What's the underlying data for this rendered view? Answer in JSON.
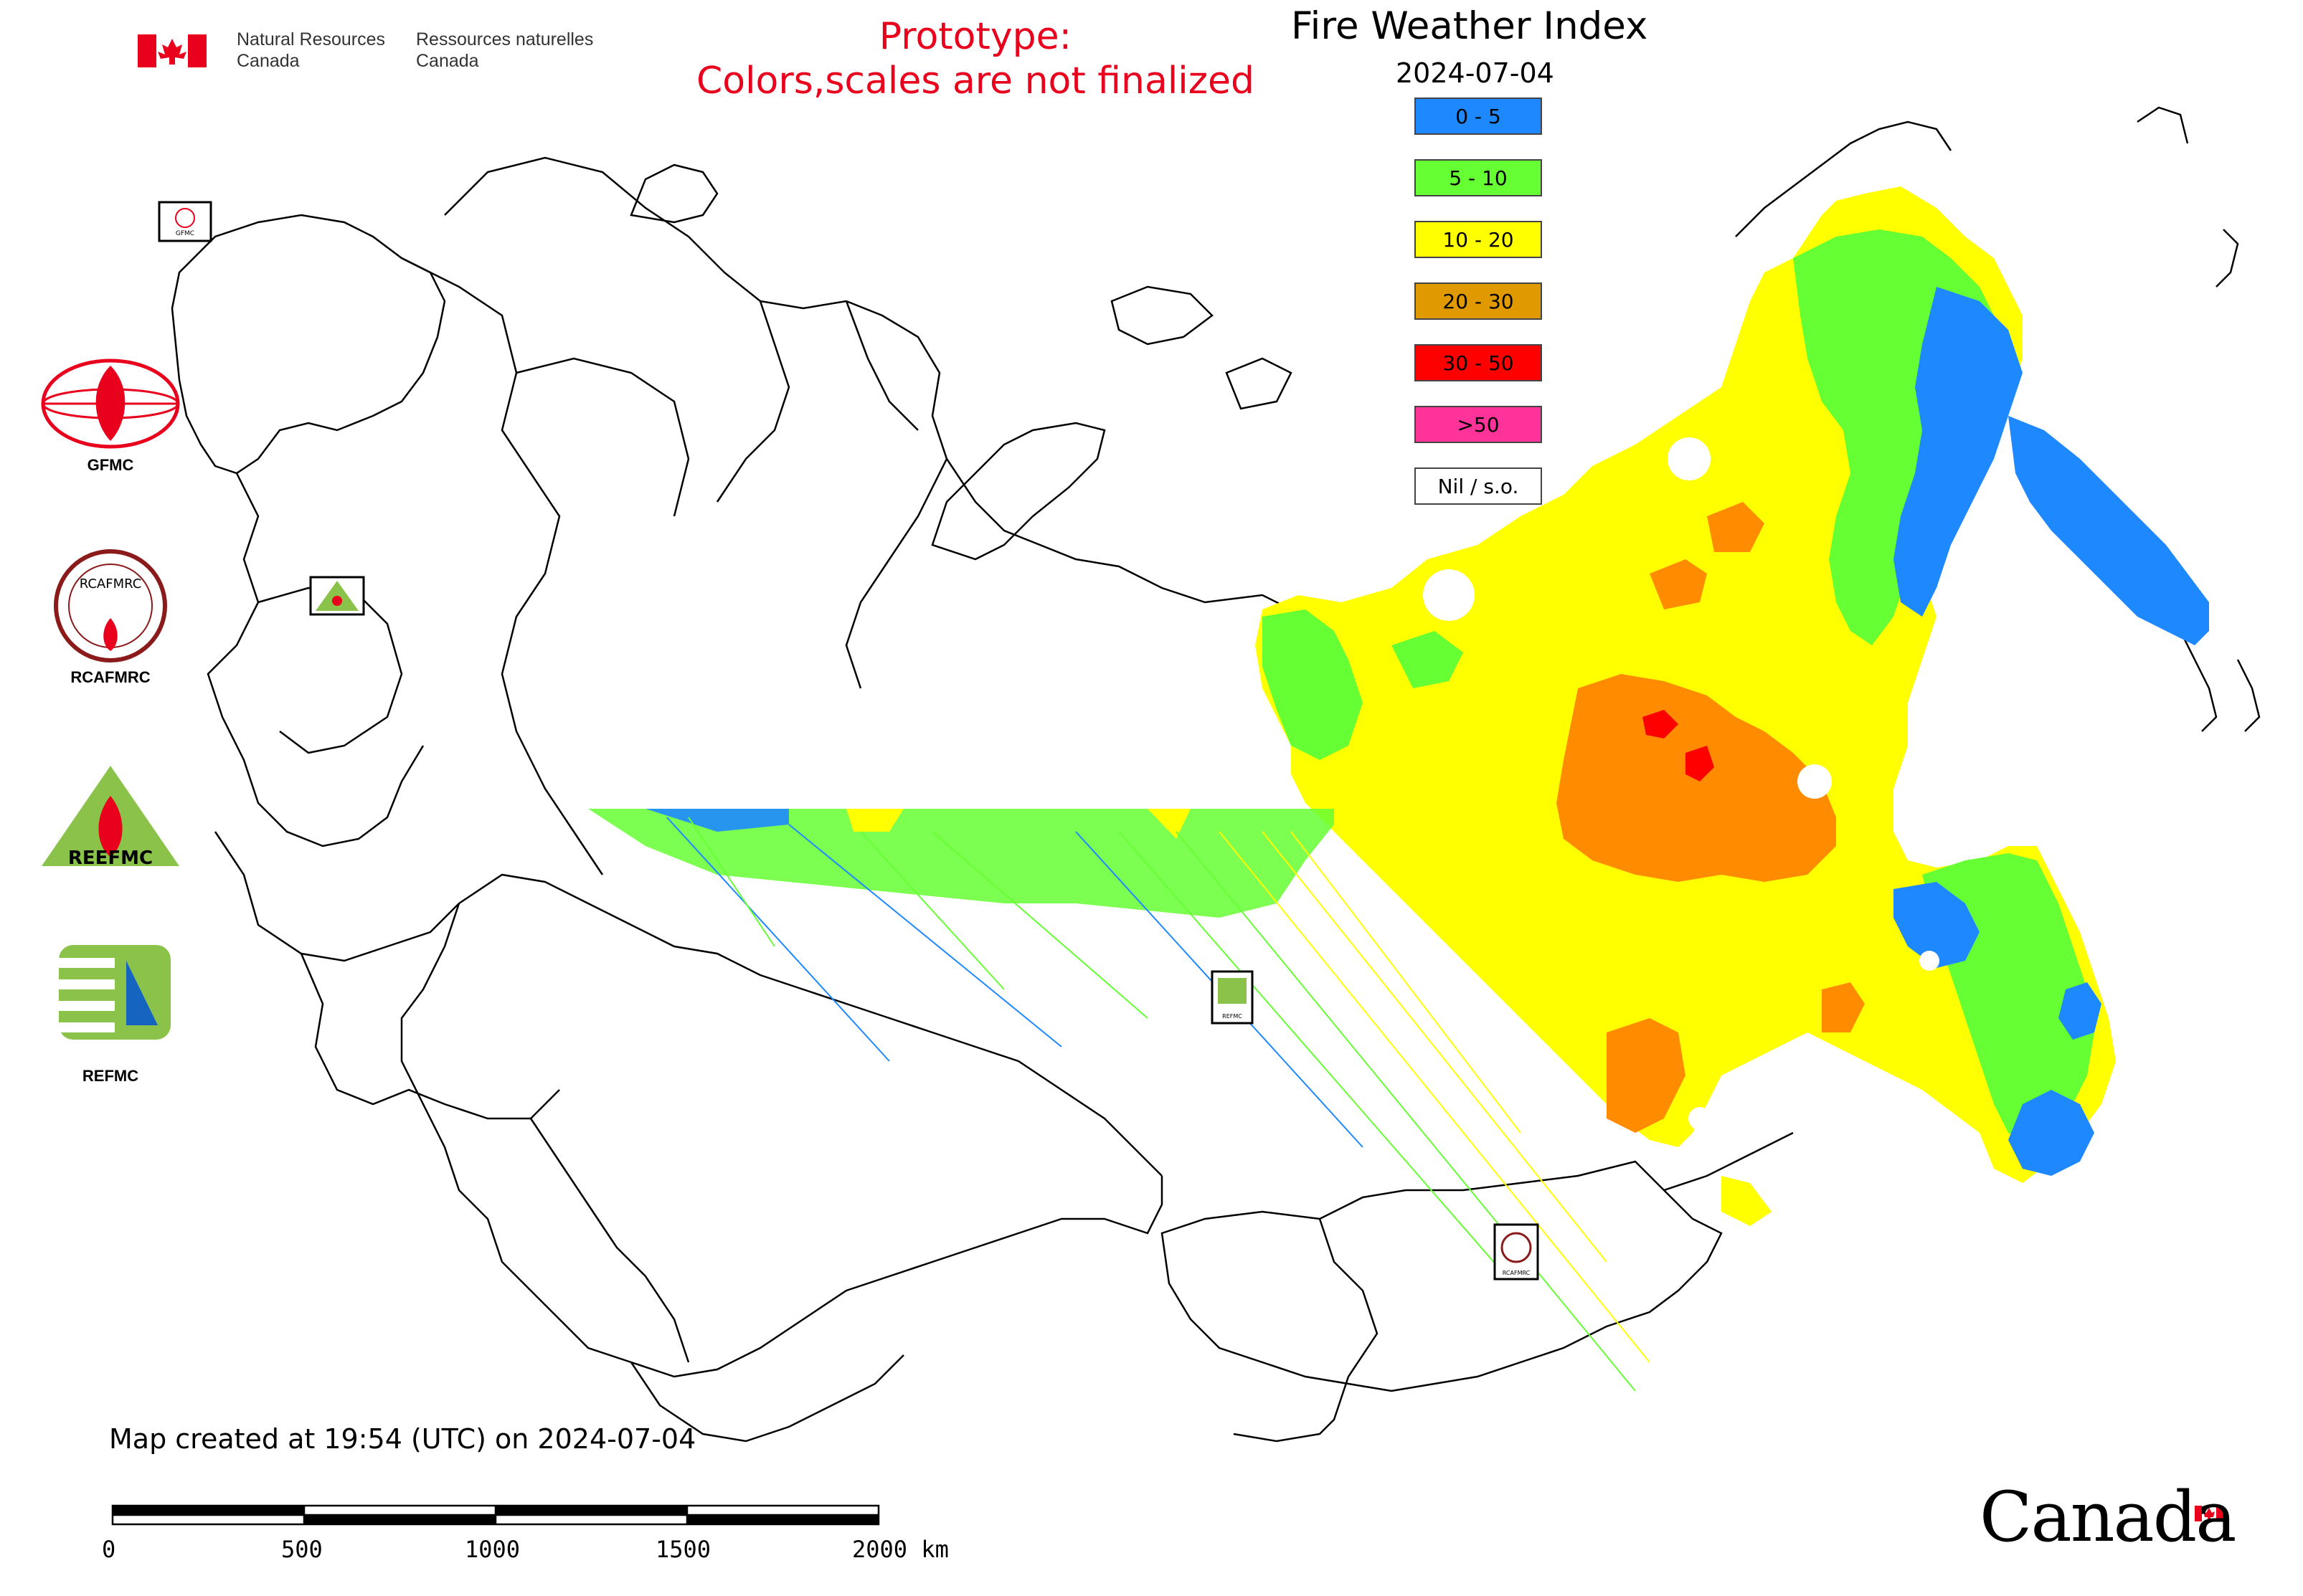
{
  "header": {
    "org_en_line1": "Natural Resources",
    "org_en_line2": "Canada",
    "org_fr_line1": "Ressources naturelles",
    "org_fr_line2": "Canada",
    "prototype_line1": "Prototype:",
    "prototype_line2": "Colors,scales are not finalized",
    "prototype_color": "#e8001c"
  },
  "map": {
    "title": "Fire Weather Index",
    "date": "2024-07-04"
  },
  "legend": [
    {
      "label": "0 - 5",
      "color": "#1e88ff"
    },
    {
      "label": "5 - 10",
      "color": "#66ff33"
    },
    {
      "label": "10 - 20",
      "color": "#ffff00"
    },
    {
      "label": "20 - 30",
      "color": "#e09a00"
    },
    {
      "label": "30 - 50",
      "color": "#ff0000"
    },
    {
      "label": ">50",
      "color": "#ff3399"
    },
    {
      "label": "Nil / s.o.",
      "color": "#ffffff"
    }
  ],
  "agencies": [
    {
      "label": "GFMC",
      "icon": "gfmc-logo-icon"
    },
    {
      "label": "RCAFMRC",
      "icon": "rcafmrc-logo-icon"
    },
    {
      "label": "REEFMC",
      "icon": "reefmc-logo-icon"
    },
    {
      "label": "REFMC",
      "icon": "refmc-logo-icon"
    }
  ],
  "footer": {
    "created_text": "Map created at 19:54 (UTC) on 2024-07-04",
    "scale_labels": [
      "0",
      "500",
      "1000",
      "1500",
      "2000 km"
    ],
    "canada_wordmark": "Canada"
  }
}
